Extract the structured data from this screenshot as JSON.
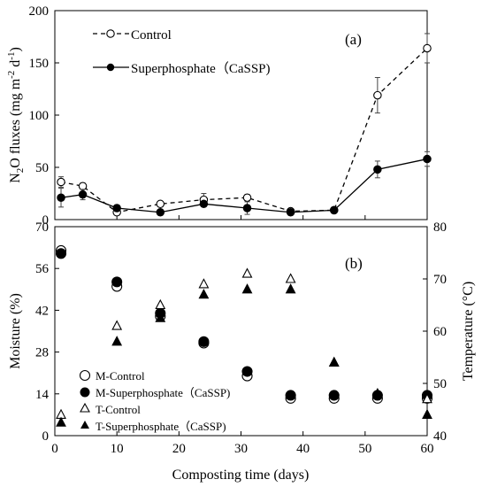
{
  "chart_data": [
    {
      "type": "line",
      "panel_label": "(a)",
      "ylabel": "N₂O fluxes (mg m⁻² d⁻¹)",
      "ylabel_parts": [
        "N",
        "2",
        "O fluxes (mg m",
        "-2",
        " d",
        "-1",
        ")"
      ],
      "xlabel": "",
      "xlim": [
        0,
        60
      ],
      "ylim": [
        0,
        200
      ],
      "yticks": [
        0,
        50,
        100,
        150,
        200
      ],
      "legend_position": "top-left",
      "series": [
        {
          "name": "Control",
          "style": "dashed",
          "marker": "open-circle",
          "x": [
            1,
            4.5,
            10,
            17,
            24,
            31,
            38,
            45,
            52,
            60
          ],
          "y": [
            36,
            32,
            7,
            15,
            19,
            21,
            8,
            9,
            119,
            164
          ],
          "err": [
            5,
            3,
            2,
            2,
            6,
            3,
            2,
            2,
            17,
            14
          ]
        },
        {
          "name": "Superphosphate（CaSSP)",
          "style": "solid",
          "marker": "filled-circle",
          "x": [
            1,
            4.5,
            10,
            17,
            24,
            31,
            38,
            45,
            52,
            60
          ],
          "y": [
            21,
            24,
            11,
            7,
            15,
            11,
            7,
            9,
            48,
            58
          ],
          "err": [
            9,
            5,
            3,
            2,
            2,
            6,
            2,
            3,
            8,
            7
          ]
        }
      ]
    },
    {
      "type": "scatter",
      "panel_label": "(b)",
      "xlabel": "Composting time (days)",
      "ylabel_left": "Moisture (%)",
      "ylabel_right": "Temperature (°C)",
      "xlim": [
        0,
        60
      ],
      "xticks": [
        0,
        10,
        20,
        30,
        40,
        50,
        60
      ],
      "ylim_left": [
        0,
        70
      ],
      "yticks_left": [
        0,
        14,
        28,
        42,
        56,
        70
      ],
      "ylim_right": [
        40,
        80
      ],
      "yticks_right": [
        40,
        50,
        60,
        70,
        80
      ],
      "legend_position": "bottom-left",
      "series": [
        {
          "name": "M-Control",
          "axis": "left",
          "marker": "open-circle",
          "x": [
            1,
            10,
            17,
            24,
            31,
            38,
            45,
            52,
            60
          ],
          "y": [
            62,
            50,
            40,
            31,
            20,
            12.5,
            12.5,
            12.5,
            12.5
          ]
        },
        {
          "name": "M-Superphosphate（CaSSP)",
          "axis": "left",
          "marker": "filled-circle",
          "x": [
            1,
            10,
            17,
            24,
            31,
            38,
            45,
            52,
            60
          ],
          "y": [
            61,
            51.5,
            41,
            31.5,
            21.5,
            13.5,
            13.5,
            13.5,
            13.5
          ]
        },
        {
          "name": "T-Control",
          "axis": "right",
          "marker": "open-triangle",
          "x": [
            1,
            10,
            17,
            24,
            31,
            38,
            45,
            52,
            60
          ],
          "y": [
            44,
            61,
            65,
            69,
            71,
            70,
            54,
            48,
            47
          ]
        },
        {
          "name": "T-Superphosphate（CaSSP)",
          "axis": "right",
          "marker": "filled-triangle",
          "x": [
            1,
            10,
            17,
            24,
            31,
            38,
            45,
            52,
            60
          ],
          "y": [
            42.5,
            58,
            62.5,
            67,
            68,
            68,
            54,
            48,
            44
          ]
        }
      ]
    }
  ]
}
